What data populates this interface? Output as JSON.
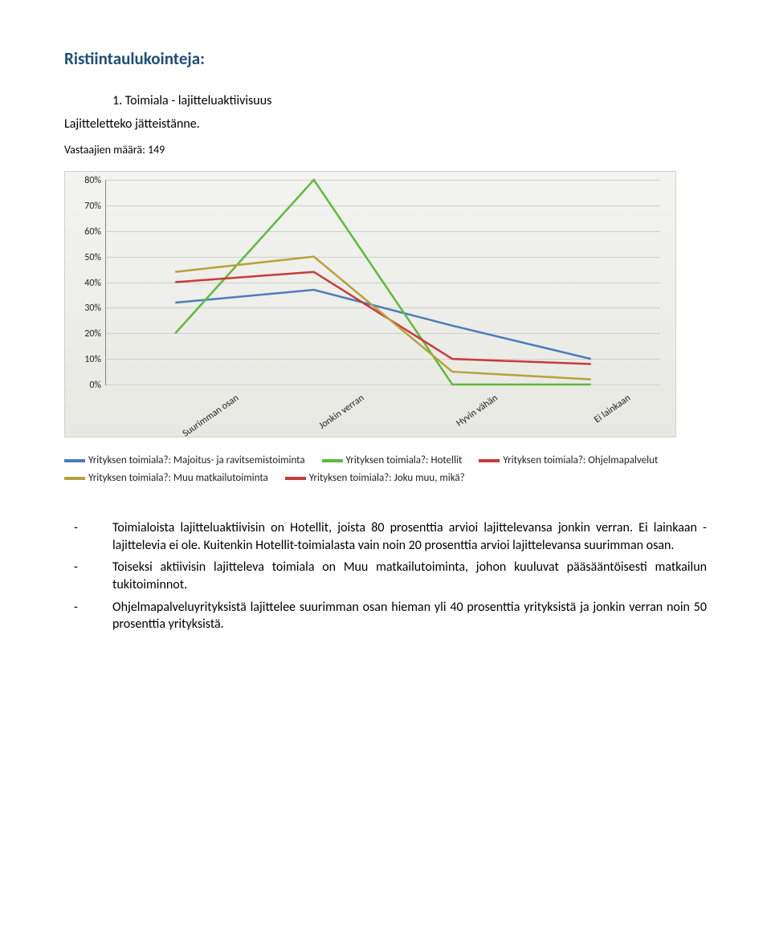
{
  "heading": "Ristiintaulukointeja:",
  "item_number": "1.    Toimiala - lajitteluaktiivisuus",
  "subtitle": "Lajitteletteko jätteistänne.",
  "count": "Vastaajien määrä: 149",
  "chart": {
    "type": "line",
    "ylim": [
      0,
      80
    ],
    "ytick_step": 10,
    "y_ticks": [
      "0%",
      "10%",
      "20%",
      "30%",
      "40%",
      "50%",
      "60%",
      "70%",
      "80%"
    ],
    "categories": [
      "Suurimman osan",
      "Jonkin verran",
      "Hyvin vähän",
      "Ei lainkaan"
    ],
    "background_gradient": [
      "#f3f3f0",
      "#e8e8e3"
    ],
    "grid_color": "#cfcfca",
    "axis_color": "#333333",
    "series": [
      {
        "label": "Yrityksen toimiala?: Majoitus- ja ravitsemistoiminta",
        "color": "#4a7dbd",
        "values": [
          32,
          37,
          23,
          10
        ]
      },
      {
        "label": "Yrityksen toimiala?: Hotellit",
        "color": "#5eba3c",
        "values": [
          20,
          80,
          0,
          0
        ]
      },
      {
        "label": "Yrityksen toimiala?: Ohjelmapalvelut",
        "color": "#c73a3a",
        "values": [
          40,
          44,
          10,
          8
        ]
      },
      {
        "label": "Yrityksen toimiala?: Muu matkailutoiminta",
        "color": "#b7a23a",
        "values": [
          44,
          50,
          5,
          2
        ]
      },
      {
        "label": "Yrityksen toimiala?: Joku muu, mikä?",
        "color": "#c73a3a",
        "values": null
      }
    ],
    "line_width": 2.5,
    "label_fontsize": 12
  },
  "bullets": [
    "Toimialoista lajitteluaktiivisin on Hotellit, joista 80 prosenttia arvioi lajittelevansa jonkin verran. Ei lainkaan -lajittelevia ei ole. Kuitenkin Hotellit-toimialasta vain noin 20 prosenttia arvioi lajittelevansa suurimman osan.",
    "Toiseksi aktiivisin lajitteleva toimiala on Muu matkailutoiminta, johon kuuluvat pääsääntöisesti matkailun tukitoiminnot.",
    "Ohjelmapalveluyrityksistä lajittelee suurimman osan hieman yli 40 prosenttia yrityksistä ja jonkin verran noin 50 prosenttia yrityksistä."
  ]
}
